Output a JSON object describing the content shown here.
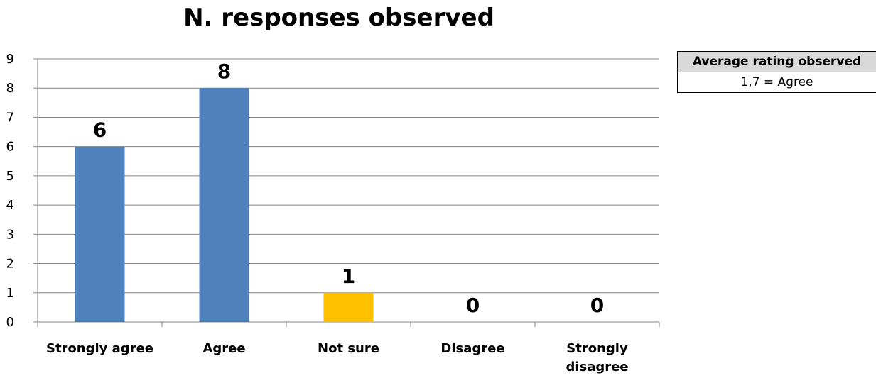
{
  "chart_data": {
    "type": "bar",
    "title": "N. responses observed",
    "categories": [
      "Strongly agree",
      "Agree",
      "Not sure",
      "Disagree",
      "Strongly\ndisagree"
    ],
    "values": [
      6,
      8,
      1,
      0,
      0
    ],
    "data_labels": [
      "6",
      "8",
      "1",
      "0",
      "0"
    ],
    "bar_colors": [
      "#4f81bd",
      "#4f81bd",
      "#ffc000",
      "#4f81bd",
      "#4f81bd"
    ],
    "ylim": [
      0,
      9
    ],
    "yticks": [
      0,
      1,
      2,
      3,
      4,
      5,
      6,
      7,
      8,
      9
    ],
    "grid": true,
    "legend": "none"
  },
  "rating_table": {
    "header": "Average rating observed",
    "value": "1,7 = Agree"
  }
}
